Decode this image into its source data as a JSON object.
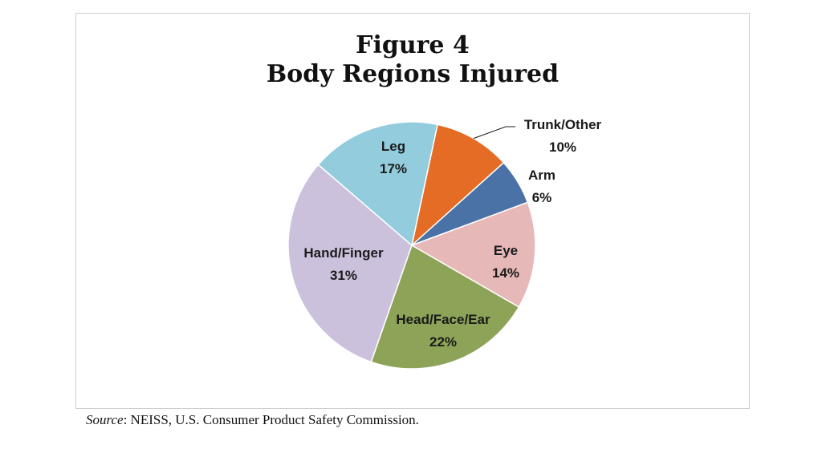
{
  "chart_data": {
    "type": "pie",
    "title_line1": "Figure 4",
    "title_line2": "Body Regions Injured",
    "slices": [
      {
        "label": "Trunk/Other",
        "value": 10,
        "pct_label": "10%",
        "color": "#E46C25"
      },
      {
        "label": "Arm",
        "value": 6,
        "pct_label": "6%",
        "color": "#4A72A6"
      },
      {
        "label": "Eye",
        "value": 14,
        "pct_label": "14%",
        "color": "#E6B9B8"
      },
      {
        "label": "Head/Face/Ear",
        "value": 22,
        "pct_label": "22%",
        "color": "#8DA358"
      },
      {
        "label": "Hand/Finger",
        "value": 31,
        "pct_label": "31%",
        "color": "#CCC1DC"
      },
      {
        "label": "Leg",
        "value": 17,
        "pct_label": "17%",
        "color": "#93CDDD"
      }
    ]
  },
  "source": {
    "label": "Source",
    "text": ": NEISS, U.S. Consumer Product Safety Commission."
  }
}
